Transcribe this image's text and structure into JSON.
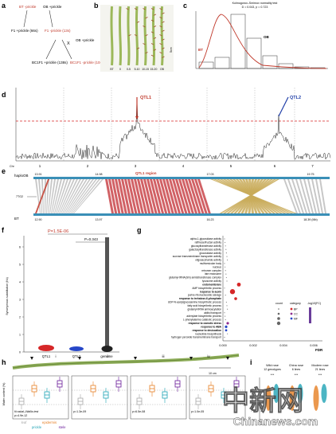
{
  "panels": {
    "a": {
      "label": "a",
      "bt": "BT -prickle",
      "ob": "OB +prickle",
      "f1_plus": "F1 +prickle (66s)",
      "f1_minus": "F1 -prickle (13s)",
      "cross": "X",
      "ob2": "OB +prickle",
      "bc1_plus": "BC1F1 +prickle (138s)",
      "bc1_minus": "BC1F1 -prickle (10s)"
    },
    "b": {
      "label": "b",
      "categories": [
        "BT",
        "0",
        "0-5",
        "5-10",
        "10-15",
        "15-20",
        "OB"
      ],
      "scale": "5cm"
    },
    "c": {
      "label": "c",
      "title": "Kolmogorov–Smirnov normality test",
      "stat": "D = 0.043, p = 0.723",
      "bt_tag": "BT",
      "ob_tag": "OB"
    },
    "d": {
      "label": "d",
      "qtl1": "QTL1",
      "qtl2": "QTL2",
      "chr_prefix": "Chr",
      "chromosomes": [
        "1",
        "2",
        "3",
        "4",
        "5",
        "6",
        "7"
      ]
    },
    "e": {
      "label": "e",
      "hap_top": "haploOB",
      "hap_bot": "BT",
      "region": "QTL1 region",
      "gene": "7TG2",
      "top_ticks": [
        "13.91",
        "14.98",
        "17.03",
        "19.75"
      ],
      "bot_ticks": [
        "12.90",
        "13.97",
        "16.23",
        "18.39 (Mb)"
      ]
    },
    "f": {
      "label": "f",
      "pval1": "P=1.5E-06",
      "pval2": "P=0.343",
      "ylabel": "Synonymous substitution (Ks)",
      "groups": [
        "QTL1",
        "QTL2",
        "genome"
      ]
    },
    "g": {
      "label": "g",
      "terms": [
        "alpha-1-glycosidase activity",
        "raffinose/fructan activity",
        "glucosyltransferase activity",
        "galactosyltransferase activity",
        "glucosidase activity",
        "sucrose transmembrane transporter activity",
        "oligosaccharide activity",
        "multivesicular body",
        "nucleus",
        "retromer complex",
        "late endosome",
        "glutamyl-tRNA(Gln) amidotransferase complex",
        "lysosome activity",
        "endomembrane",
        "AMP biosynthetic process",
        "response to auxin",
        "purine ribonucleoside salvage",
        "response to trehalose-6-phosphate",
        "UDP-N-acetylglucosamine biosynthetic process",
        "fatty acid biosynthetic process",
        "glutamyl-tRNA aminoacylation",
        "alditol transport",
        "adenylate biosynthetic process",
        "L-phenylalanine catabolic process",
        "response to osmotic stress",
        "response to ABA",
        "response to desiccation",
        "nucleotide biosynthesis",
        "hydrogen peroxide transmembrane transport"
      ],
      "legend_count": "count",
      "legend_category": "category",
      "legend_fdr": "-log10(FC)",
      "categories": [
        "BP",
        "CC",
        "MF"
      ],
      "fdr_ticks": [
        "0.000",
        "0.002",
        "0.004",
        "0.006"
      ],
      "xlabel": "FDR"
    },
    "h": {
      "label": "h",
      "ruler": "10 cm",
      "roman": [
        "i",
        "ii",
        "iii",
        "iv"
      ],
      "ylabel": "Water content (%)",
      "kw": "Kruskal–Wallis test",
      "pvals": [
        "p=4.9e-12",
        "p=1.3e-09",
        "p=6.5e-08",
        "p=1.0e-05"
      ],
      "xlabels": [
        "leaf",
        "epidermis",
        "prickle",
        "stele"
      ]
    },
    "i": {
      "label": "i",
      "groups": [
        {
          "name": "Wild rose",
          "sub": "12 genotypes"
        },
        {
          "name": "China rose",
          "sub": "6 lines"
        },
        {
          "name": "Modern rose",
          "sub": "21 lines"
        }
      ],
      "sig": [
        "***",
        "***",
        "***"
      ],
      "ylabel": "Water content (%)"
    }
  },
  "watermark": {
    "cn": "中新网",
    "url": "Chinanews.com"
  }
}
